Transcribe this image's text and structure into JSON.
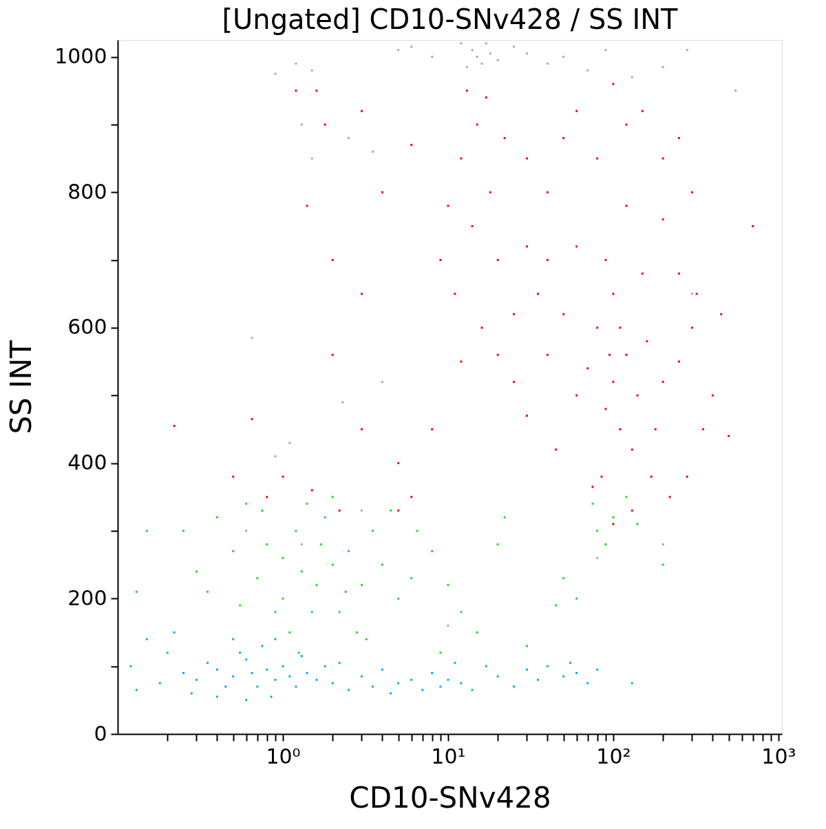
{
  "chart_data": {
    "type": "scatter",
    "title": "[Ungated] CD10-SNv428 / SS INT",
    "xlabel": "CD10-SNv428",
    "ylabel": "SS INT",
    "log": "x",
    "marker": "square",
    "grid": false,
    "xlim": [
      0.1,
      1050
    ],
    "ylim": [
      0,
      1025
    ],
    "xticks": [
      {
        "value": 0.2,
        "label": null
      },
      {
        "value": 0.3,
        "label": null
      },
      {
        "value": 0.4,
        "label": null
      },
      {
        "value": 0.5,
        "label": null
      },
      {
        "value": 0.6,
        "label": null
      },
      {
        "value": 0.7,
        "label": null
      },
      {
        "value": 0.8,
        "label": null
      },
      {
        "value": 0.9,
        "label": null
      },
      {
        "value": 1,
        "label": "10⁰"
      },
      {
        "value": 2,
        "label": null
      },
      {
        "value": 3,
        "label": null
      },
      {
        "value": 4,
        "label": null
      },
      {
        "value": 5,
        "label": null
      },
      {
        "value": 6,
        "label": null
      },
      {
        "value": 7,
        "label": null
      },
      {
        "value": 8,
        "label": null
      },
      {
        "value": 9,
        "label": null
      },
      {
        "value": 10,
        "label": "10¹"
      },
      {
        "value": 20,
        "label": null
      },
      {
        "value": 30,
        "label": null
      },
      {
        "value": 40,
        "label": null
      },
      {
        "value": 50,
        "label": null
      },
      {
        "value": 60,
        "label": null
      },
      {
        "value": 70,
        "label": null
      },
      {
        "value": 80,
        "label": null
      },
      {
        "value": 90,
        "label": null
      },
      {
        "value": 100,
        "label": "10²"
      },
      {
        "value": 200,
        "label": null
      },
      {
        "value": 300,
        "label": null
      },
      {
        "value": 400,
        "label": null
      },
      {
        "value": 500,
        "label": null
      },
      {
        "value": 600,
        "label": null
      },
      {
        "value": 700,
        "label": null
      },
      {
        "value": 800,
        "label": null
      },
      {
        "value": 900,
        "label": null
      },
      {
        "value": 1000,
        "label": "10³"
      }
    ],
    "yticks": [
      0,
      {
        "value": 100,
        "label": null
      },
      200,
      {
        "value": 300,
        "label": null
      },
      400,
      {
        "value": 500,
        "label": null
      },
      600,
      {
        "value": 700,
        "label": null
      },
      800,
      {
        "value": 900,
        "label": null
      },
      1000
    ],
    "series": [
      {
        "color": "#aaaaaa",
        "x": [
          15,
          14,
          16,
          17,
          13,
          18,
          12,
          20,
          8,
          6,
          5,
          25,
          30,
          40,
          50,
          70,
          90,
          130,
          200,
          280,
          550,
          0.9,
          1.2,
          1.5,
          1.3,
          1.5,
          2.5,
          3.5,
          0.65,
          1.1,
          0.9,
          0.6,
          1.3,
          2.3,
          3,
          4,
          10,
          80,
          200,
          300
        ],
        "values": [
          1000,
          1010,
          990,
          1020,
          985,
          1005,
          1020,
          995,
          1000,
          1015,
          1010,
          1015,
          1005,
          990,
          1000,
          980,
          1010,
          970,
          985,
          1010,
          950,
          975,
          990,
          980,
          900,
          850,
          880,
          860,
          585,
          430,
          410,
          300,
          280,
          490,
          330,
          520,
          160,
          260,
          280,
          650
        ]
      },
      {
        "color": "#ff0000",
        "x": [
          100,
          90,
          120,
          80,
          140,
          110,
          70,
          160,
          100,
          130,
          85,
          60,
          200,
          180,
          150,
          90,
          50,
          250,
          300,
          350,
          280,
          220,
          130,
          100,
          75,
          45,
          40,
          35,
          60,
          120,
          200,
          250,
          400,
          450,
          700,
          500,
          320,
          170,
          110,
          95,
          15,
          12,
          18,
          14,
          20,
          11,
          16,
          25,
          30,
          22,
          13,
          17,
          10,
          9,
          30,
          40,
          50,
          60,
          80,
          120,
          150,
          200,
          250,
          300,
          40,
          25,
          20,
          30,
          12,
          8,
          1,
          1.5,
          0.8,
          0.5,
          2,
          3,
          2,
          1.8,
          1.6,
          1.2,
          0.22,
          0.65,
          3,
          5,
          2.2,
          6,
          4,
          3,
          6,
          5,
          100,
          1.4
        ],
        "values": [
          520,
          480,
          560,
          600,
          500,
          450,
          540,
          580,
          650,
          420,
          380,
          500,
          520,
          450,
          680,
          700,
          620,
          550,
          600,
          450,
          380,
          350,
          330,
          310,
          365,
          420,
          560,
          650,
          720,
          780,
          760,
          680,
          500,
          620,
          750,
          440,
          650,
          380,
          600,
          560,
          900,
          850,
          800,
          750,
          700,
          650,
          600,
          620,
          720,
          880,
          950,
          940,
          780,
          700,
          850,
          800,
          880,
          920,
          850,
          900,
          920,
          850,
          880,
          800,
          700,
          520,
          560,
          470,
          550,
          450,
          380,
          360,
          350,
          380,
          560,
          650,
          700,
          900,
          950,
          950,
          455,
          465,
          450,
          400,
          330,
          350,
          800,
          920,
          870,
          330,
          960,
          780
        ]
      },
      {
        "color": "#22dd22",
        "x": [
          1.3,
          1.0,
          1.6,
          1.2,
          0.8,
          2,
          1.5,
          1,
          0.7,
          2.5,
          3,
          3.5,
          4,
          5,
          6,
          8,
          0.5,
          0.4,
          0.6,
          0.35,
          0.3,
          0.25,
          0.13,
          0.15,
          1.8,
          2.2,
          2.8,
          1.1,
          0.9,
          1.4,
          1.7,
          2.4,
          4.5,
          6.5,
          10,
          12,
          20,
          22,
          15,
          9,
          50,
          60,
          80,
          90,
          100,
          140,
          200,
          120,
          75,
          30,
          45,
          0.75,
          1.25,
          2.0,
          3.2,
          0.55
        ],
        "values": [
          240,
          260,
          220,
          300,
          280,
          250,
          180,
          200,
          230,
          270,
          220,
          300,
          250,
          200,
          230,
          270,
          270,
          320,
          340,
          210,
          240,
          300,
          210,
          300,
          320,
          180,
          150,
          150,
          180,
          340,
          280,
          210,
          330,
          300,
          220,
          180,
          280,
          320,
          150,
          120,
          230,
          200,
          300,
          280,
          320,
          310,
          250,
          350,
          340,
          130,
          190,
          330,
          120,
          350,
          140,
          190
        ]
      },
      {
        "color": "#00aaff",
        "x": [
          0.65,
          0.5,
          0.8,
          0.6,
          0.7,
          0.4,
          0.9,
          0.55,
          0.75,
          0.45,
          1.0,
          1.1,
          0.35,
          0.3,
          0.25,
          0.2,
          0.15,
          0.12,
          0.18,
          0.28,
          0.4,
          0.6,
          0.85,
          1.2,
          1.4,
          1.6,
          2,
          2.5,
          3,
          3.5,
          4,
          5,
          6,
          7,
          8,
          9,
          10,
          12,
          14,
          17,
          20,
          25,
          30,
          35,
          40,
          50,
          60,
          70,
          80,
          130,
          0.5,
          0.9,
          1.3,
          0.22,
          0.13,
          1.8,
          2.2,
          4.5,
          11,
          55
        ],
        "values": [
          90,
          85,
          95,
          110,
          70,
          95,
          80,
          120,
          130,
          70,
          100,
          85,
          105,
          80,
          90,
          120,
          140,
          100,
          75,
          60,
          55,
          50,
          55,
          70,
          90,
          80,
          75,
          65,
          85,
          70,
          95,
          75,
          80,
          65,
          90,
          70,
          80,
          75,
          65,
          100,
          85,
          70,
          95,
          80,
          100,
          85,
          90,
          75,
          95,
          75,
          140,
          140,
          115,
          150,
          65,
          100,
          105,
          60,
          105,
          105
        ]
      }
    ]
  }
}
